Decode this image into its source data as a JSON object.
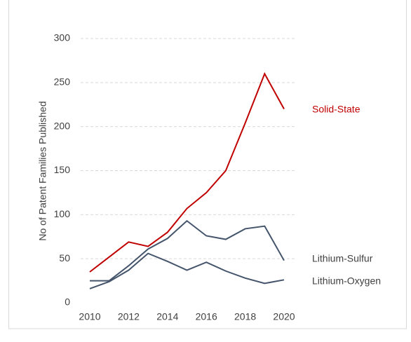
{
  "chart_data": {
    "type": "line",
    "y_label": "No of Patent Families Published",
    "x": [
      2010,
      2011,
      2012,
      2013,
      2014,
      2015,
      2016,
      2017,
      2018,
      2019,
      2020
    ],
    "xlim": [
      2010,
      2020
    ],
    "xticks": [
      2010,
      2012,
      2014,
      2016,
      2018,
      2020
    ],
    "ylim": [
      0,
      300
    ],
    "yticks": [
      0,
      50,
      100,
      150,
      200,
      250,
      300
    ],
    "grid": true,
    "series": [
      {
        "name": "Solid-State",
        "color": "#c00000",
        "values": [
          35,
          52,
          69,
          64,
          80,
          107,
          125,
          150,
          204,
          260,
          220
        ]
      },
      {
        "name": "Lithium-Sulfur",
        "color": "#44546a",
        "values": [
          25,
          25,
          42,
          61,
          73,
          93,
          76,
          72,
          84,
          87,
          48
        ]
      },
      {
        "name": "Lithium-Oxygen",
        "color": "#44546a",
        "values": [
          16,
          24,
          37,
          56,
          47,
          37,
          46,
          36,
          28,
          22,
          26
        ]
      }
    ]
  }
}
